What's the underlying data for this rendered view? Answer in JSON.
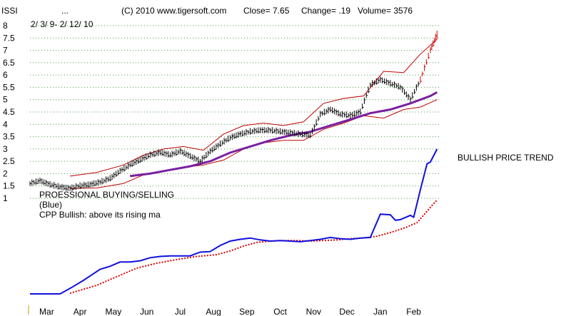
{
  "header": {
    "ticker": "ISSI",
    "dots": "...",
    "copyright": "(C) 2010 www.tigersoft.com",
    "close": "Close=  7.65",
    "change": "Change= .19",
    "volume": "Volume=  3576",
    "date_range": "2/ 3/ 9- 2/ 12/ 10"
  },
  "annotations": {
    "line1": "PROESSIONAL BUYING/SELLING",
    "line2": "(Blue)",
    "line3": "CPP Bullish: above its rising ma",
    "trend": "BULLISH PRICE TREND"
  },
  "colors": {
    "bars": "#000000",
    "bars_recent": "#d00000",
    "bands": "#c00000",
    "ma": "#7a1fa2",
    "cpp": "#1010e0",
    "cpp_ma": "#e00000",
    "grid": "#4a9a4a"
  },
  "chart_data": {
    "type": "line",
    "title": "",
    "xlabel": "",
    "ylabel": "",
    "y_ticks": [
      "8",
      "7.5",
      "7",
      "6.5",
      "6",
      "5.5",
      "5",
      "4.5",
      "4",
      "3.5",
      "3",
      "2.5",
      "2",
      "1.5",
      "1"
    ],
    "ylim": [
      1,
      8
    ],
    "x_ticks": [
      "Mar",
      "Apr",
      "May",
      "Jun",
      "Jul",
      "Aug",
      "Sep",
      "Oct",
      "Nov",
      "Dec",
      "Jan",
      "Feb"
    ],
    "xlim": [
      0,
      12.3
    ],
    "grid": "horizontal dotted",
    "series": [
      {
        "role": "price_close",
        "x": [
          0,
          0.3,
          0.6,
          0.9,
          1.2,
          1.5,
          1.8,
          2.1,
          2.4,
          2.7,
          3.0,
          3.3,
          3.6,
          3.9,
          4.2,
          4.5,
          4.8,
          5.1,
          5.4,
          5.7,
          6.0,
          6.3,
          6.6,
          6.9,
          7.2,
          7.5,
          7.8,
          8.1,
          8.4,
          8.7,
          9.0,
          9.3,
          9.6,
          9.9,
          10.2,
          10.5,
          10.8,
          11.1,
          11.4,
          11.7,
          12.0,
          12.2
        ],
        "y": [
          1.6,
          1.7,
          1.55,
          1.45,
          1.4,
          1.5,
          1.55,
          1.65,
          1.8,
          2.1,
          2.35,
          2.55,
          2.75,
          2.85,
          2.75,
          2.9,
          2.7,
          2.5,
          2.9,
          3.2,
          3.45,
          3.6,
          3.7,
          3.75,
          3.75,
          3.7,
          3.65,
          3.6,
          3.55,
          4.4,
          4.6,
          4.4,
          4.35,
          4.5,
          5.6,
          5.8,
          5.65,
          5.5,
          5.0,
          5.8,
          7.0,
          7.65
        ]
      },
      {
        "role": "upper_band",
        "x": [
          1.2,
          2.0,
          2.8,
          3.4,
          4.0,
          4.6,
          5.2,
          5.8,
          6.4,
          7.0,
          7.6,
          8.2,
          8.8,
          9.4,
          10.0,
          10.6,
          11.2,
          11.7,
          12.2
        ],
        "y": [
          1.9,
          2.05,
          2.35,
          2.75,
          3.0,
          3.1,
          2.95,
          3.6,
          3.95,
          4.05,
          3.95,
          4.1,
          4.85,
          5.05,
          5.15,
          6.15,
          6.1,
          6.85,
          7.45
        ]
      },
      {
        "role": "lower_band",
        "x": [
          1.2,
          2.0,
          2.8,
          3.4,
          4.0,
          4.6,
          5.2,
          5.8,
          6.4,
          7.0,
          7.6,
          8.2,
          8.8,
          9.4,
          10.0,
          10.6,
          11.2,
          11.7,
          12.2
        ],
        "y": [
          1.4,
          1.42,
          1.6,
          1.95,
          2.1,
          2.25,
          2.35,
          2.55,
          3.0,
          3.25,
          3.35,
          3.35,
          3.8,
          4.05,
          4.35,
          4.25,
          4.6,
          4.7,
          5.0
        ]
      },
      {
        "role": "moving_average",
        "x": [
          3.0,
          3.6,
          4.2,
          4.8,
          5.4,
          6.0,
          6.6,
          7.2,
          7.8,
          8.4,
          9.0,
          9.6,
          10.2,
          10.8,
          11.4,
          12.0,
          12.2
        ],
        "y": [
          1.9,
          2.0,
          2.15,
          2.3,
          2.5,
          2.85,
          3.1,
          3.35,
          3.55,
          3.7,
          3.95,
          4.2,
          4.45,
          4.6,
          4.85,
          5.15,
          5.3
        ]
      }
    ]
  },
  "cpp_data": {
    "label": "(Blue)",
    "x": [
      0,
      0.9,
      1.2,
      1.6,
      2.1,
      2.4,
      2.7,
      3.0,
      3.3,
      3.6,
      3.9,
      4.2,
      4.5,
      4.8,
      5.1,
      5.4,
      5.7,
      6.0,
      6.3,
      6.6,
      6.9,
      7.2,
      7.5,
      7.8,
      8.1,
      8.4,
      8.7,
      9.0,
      9.3,
      9.6,
      9.9,
      10.2,
      10.5,
      10.8,
      10.95,
      11.1,
      11.4,
      11.5,
      11.7,
      11.9,
      12.0,
      12.2
    ],
    "y": [
      -0.6,
      -0.6,
      0.3,
      1.6,
      3.4,
      3.9,
      4.6,
      4.6,
      4.8,
      5.3,
      5.5,
      5.6,
      5.6,
      5.6,
      6.2,
      6.3,
      7.3,
      8.0,
      8.3,
      8.5,
      8.2,
      8.0,
      8.1,
      8.0,
      7.9,
      8.1,
      8.3,
      8.6,
      8.4,
      8.3,
      8.5,
      8.6,
      12.4,
      12.3,
      11.4,
      11.5,
      12.2,
      11.9,
      16.4,
      20.6,
      20.9,
      23.0
    ],
    "ma_x": [
      1.2,
      2.0,
      2.6,
      3.2,
      3.8,
      4.4,
      5.0,
      5.6,
      6.0,
      6.4,
      6.8,
      7.2,
      7.6,
      8.0,
      8.4,
      8.8,
      9.2,
      9.6,
      10.0,
      10.4,
      10.8,
      11.2,
      11.6,
      12.0,
      12.2
    ],
    "ma_y": [
      -0.5,
      0.8,
      2.2,
      3.6,
      4.4,
      5.0,
      5.5,
      5.8,
      6.4,
      7.2,
      7.8,
      8.0,
      8.1,
      8.1,
      8.0,
      8.1,
      8.2,
      8.4,
      8.5,
      8.8,
      9.4,
      10.1,
      11.0,
      13.5,
      14.7
    ]
  }
}
